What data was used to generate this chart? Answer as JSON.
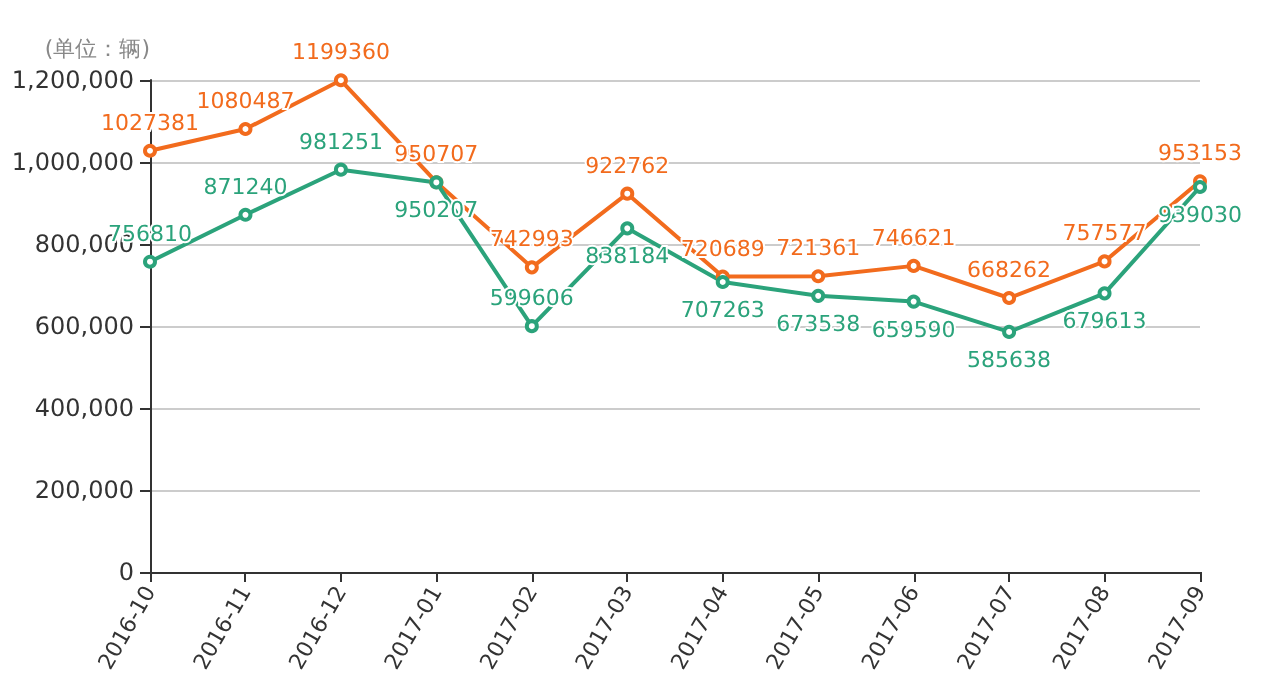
{
  "chart_data": {
    "type": "line",
    "ylabel": "(单位：辆)",
    "categories": [
      "2016-10",
      "2016-11",
      "2016-12",
      "2017-01",
      "2017-02",
      "2017-03",
      "2017-04",
      "2017-05",
      "2017-06",
      "2017-07",
      "2017-08",
      "2017-09"
    ],
    "series": [
      {
        "color": "#f26b1d",
        "values": [
          1027381,
          1080487,
          1199360,
          950707,
          742993,
          922762,
          720689,
          721361,
          746621,
          668262,
          757577,
          953153
        ]
      },
      {
        "color": "#2ba37b",
        "values": [
          756810,
          871240,
          981251,
          950207,
          599606,
          838184,
          707263,
          673538,
          659590,
          585638,
          679613,
          939030
        ]
      }
    ],
    "ylim": [
      0,
      1200000
    ],
    "yticks": [
      0,
      {
        "value": 200000,
        "label": "200,000"
      },
      {
        "value": 400000,
        "label": "400,000"
      },
      {
        "value": 600000,
        "label": "600,000"
      },
      {
        "value": 800000,
        "label": "800,000"
      },
      {
        "value": 1000000,
        "label": "1,000,000"
      },
      {
        "value": 1200000,
        "label": "1,200,000"
      }
    ],
    "grid": "y",
    "marker": "circle",
    "line_style": "solid",
    "data_labels": true
  }
}
